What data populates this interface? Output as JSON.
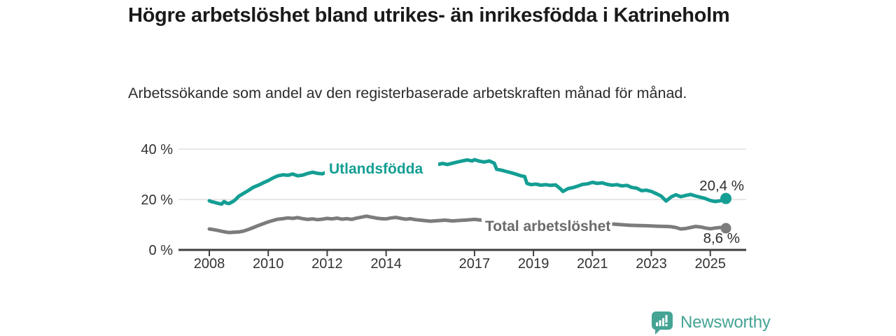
{
  "header": {
    "title": "Högre arbetslöshet bland utrikes- än inrikesfödda i Katrineholm",
    "subtitle": "Arbetssökande som andel av den registerbaserade arbetskraften månad för månad."
  },
  "chart_data": {
    "type": "line",
    "title": "Högre arbetslöshet bland utrikes- än inrikesfödda i Katrineholm",
    "subtitle": "Arbetssökande som andel av den registerbaserade arbetskraften månad för månad.",
    "x_axis": {
      "unit": "year",
      "ticks": [
        "2008",
        "2010",
        "2012",
        "2014",
        "2017",
        "2019",
        "2021",
        "2023",
        "2025"
      ],
      "tick_values": [
        2008,
        2010,
        2012,
        2014,
        2017,
        2019,
        2021,
        2023,
        2025
      ],
      "range": [
        2008,
        2025.6
      ]
    },
    "y_axis": {
      "unit": "%",
      "ticks": [
        0,
        20,
        40
      ],
      "tick_labels": [
        "0 %",
        "20 %",
        "40 %"
      ],
      "range": [
        0,
        44
      ]
    },
    "grid": "horizontal",
    "legend": "inline-labels",
    "series": [
      {
        "name": "Utlandsfödda",
        "color": "#149e94",
        "end_value": 20.4,
        "end_label": "20,4 %",
        "points": [
          [
            2008.0,
            19.5
          ],
          [
            2008.08,
            19.1
          ],
          [
            2008.17,
            18.9
          ],
          [
            2008.25,
            18.6
          ],
          [
            2008.33,
            18.4
          ],
          [
            2008.42,
            18.2
          ],
          [
            2008.5,
            19.2
          ],
          [
            2008.58,
            18.6
          ],
          [
            2008.67,
            18.4
          ],
          [
            2008.75,
            18.9
          ],
          [
            2008.83,
            19.4
          ],
          [
            2008.92,
            20.3
          ],
          [
            2009.0,
            21.3
          ],
          [
            2009.17,
            22.5
          ],
          [
            2009.33,
            23.6
          ],
          [
            2009.5,
            24.9
          ],
          [
            2009.67,
            25.7
          ],
          [
            2009.83,
            26.6
          ],
          [
            2010.0,
            27.5
          ],
          [
            2010.17,
            28.6
          ],
          [
            2010.33,
            29.4
          ],
          [
            2010.5,
            29.8
          ],
          [
            2010.67,
            29.6
          ],
          [
            2010.83,
            30.1
          ],
          [
            2011.0,
            29.4
          ],
          [
            2011.17,
            29.7
          ],
          [
            2011.33,
            30.3
          ],
          [
            2011.5,
            30.8
          ],
          [
            2011.67,
            30.4
          ],
          [
            2011.83,
            30.2
          ],
          [
            2012.0,
            30.9
          ],
          [
            2012.17,
            31.5
          ],
          [
            2012.33,
            31.8
          ],
          [
            2012.5,
            31.4
          ],
          [
            2012.67,
            31.9
          ],
          [
            2012.83,
            31.6
          ],
          [
            2013.0,
            32.1
          ],
          [
            2013.17,
            32.5
          ],
          [
            2013.33,
            32.1
          ],
          [
            2013.5,
            32.4
          ],
          [
            2013.67,
            32.8
          ],
          [
            2013.83,
            32.4
          ],
          [
            2014.0,
            32.0
          ],
          [
            2014.17,
            30.9
          ],
          [
            2014.33,
            31.7
          ],
          [
            2014.58,
            32.3
          ],
          [
            2014.83,
            32.7
          ],
          [
            2015.08,
            33.0
          ],
          [
            2015.33,
            33.3
          ],
          [
            2015.58,
            33.7
          ],
          [
            2015.75,
            33.9
          ],
          [
            2015.92,
            34.3
          ],
          [
            2016.08,
            33.9
          ],
          [
            2016.25,
            34.4
          ],
          [
            2016.42,
            34.9
          ],
          [
            2016.58,
            35.3
          ],
          [
            2016.75,
            35.7
          ],
          [
            2016.92,
            35.3
          ],
          [
            2017.0,
            35.8
          ],
          [
            2017.17,
            35.2
          ],
          [
            2017.33,
            34.9
          ],
          [
            2017.5,
            35.3
          ],
          [
            2017.67,
            34.4
          ],
          [
            2017.75,
            32.0
          ],
          [
            2017.92,
            31.6
          ],
          [
            2018.08,
            31.1
          ],
          [
            2018.25,
            30.6
          ],
          [
            2018.42,
            30.0
          ],
          [
            2018.58,
            29.4
          ],
          [
            2018.7,
            29.1
          ],
          [
            2018.78,
            26.4
          ],
          [
            2018.92,
            25.9
          ],
          [
            2019.08,
            26.1
          ],
          [
            2019.25,
            25.7
          ],
          [
            2019.42,
            25.9
          ],
          [
            2019.58,
            25.6
          ],
          [
            2019.75,
            25.8
          ],
          [
            2019.92,
            24.2
          ],
          [
            2020.0,
            23.2
          ],
          [
            2020.17,
            24.3
          ],
          [
            2020.33,
            24.7
          ],
          [
            2020.5,
            25.3
          ],
          [
            2020.67,
            26.0
          ],
          [
            2020.83,
            26.2
          ],
          [
            2021.0,
            26.8
          ],
          [
            2021.17,
            26.4
          ],
          [
            2021.33,
            26.6
          ],
          [
            2021.5,
            26.0
          ],
          [
            2021.67,
            25.7
          ],
          [
            2021.83,
            25.9
          ],
          [
            2022.0,
            25.4
          ],
          [
            2022.17,
            25.6
          ],
          [
            2022.33,
            24.8
          ],
          [
            2022.5,
            24.5
          ],
          [
            2022.67,
            23.5
          ],
          [
            2022.83,
            23.7
          ],
          [
            2023.0,
            23.2
          ],
          [
            2023.17,
            22.3
          ],
          [
            2023.33,
            21.4
          ],
          [
            2023.5,
            19.4
          ],
          [
            2023.67,
            21.0
          ],
          [
            2023.83,
            21.9
          ],
          [
            2024.0,
            21.1
          ],
          [
            2024.17,
            21.6
          ],
          [
            2024.33,
            22.0
          ],
          [
            2024.5,
            21.4
          ],
          [
            2024.67,
            20.9
          ],
          [
            2024.83,
            20.4
          ],
          [
            2025.0,
            19.6
          ],
          [
            2025.17,
            19.2
          ],
          [
            2025.33,
            19.5
          ],
          [
            2025.5,
            19.9
          ],
          [
            2025.58,
            20.4
          ]
        ]
      },
      {
        "name": "Total arbetslöshet",
        "color": "#7c7c7c",
        "end_value": 8.6,
        "end_label": "8,6 %",
        "points": [
          [
            2008.0,
            8.3
          ],
          [
            2008.17,
            8.0
          ],
          [
            2008.33,
            7.6
          ],
          [
            2008.5,
            7.2
          ],
          [
            2008.67,
            6.9
          ],
          [
            2008.83,
            7.0
          ],
          [
            2009.0,
            7.1
          ],
          [
            2009.17,
            7.5
          ],
          [
            2009.33,
            8.1
          ],
          [
            2009.5,
            8.9
          ],
          [
            2009.67,
            9.7
          ],
          [
            2009.83,
            10.4
          ],
          [
            2010.0,
            11.1
          ],
          [
            2010.17,
            11.7
          ],
          [
            2010.33,
            12.2
          ],
          [
            2010.5,
            12.4
          ],
          [
            2010.67,
            12.7
          ],
          [
            2010.83,
            12.5
          ],
          [
            2011.0,
            12.8
          ],
          [
            2011.17,
            12.4
          ],
          [
            2011.33,
            12.1
          ],
          [
            2011.5,
            12.3
          ],
          [
            2011.67,
            12.0
          ],
          [
            2011.83,
            12.2
          ],
          [
            2012.0,
            12.5
          ],
          [
            2012.17,
            12.3
          ],
          [
            2012.33,
            12.6
          ],
          [
            2012.5,
            12.2
          ],
          [
            2012.67,
            12.4
          ],
          [
            2012.83,
            12.1
          ],
          [
            2013.0,
            12.6
          ],
          [
            2013.17,
            13.0
          ],
          [
            2013.33,
            13.4
          ],
          [
            2013.5,
            13.0
          ],
          [
            2013.67,
            12.6
          ],
          [
            2013.83,
            12.4
          ],
          [
            2014.0,
            12.3
          ],
          [
            2014.17,
            12.7
          ],
          [
            2014.33,
            12.9
          ],
          [
            2014.5,
            12.5
          ],
          [
            2014.67,
            12.2
          ],
          [
            2014.83,
            12.4
          ],
          [
            2015.0,
            12.0
          ],
          [
            2015.25,
            11.7
          ],
          [
            2015.5,
            11.4
          ],
          [
            2015.75,
            11.6
          ],
          [
            2016.0,
            11.8
          ],
          [
            2016.25,
            11.5
          ],
          [
            2016.5,
            11.7
          ],
          [
            2016.75,
            11.9
          ],
          [
            2017.0,
            12.1
          ],
          [
            2017.25,
            11.8
          ],
          [
            2017.5,
            11.9
          ],
          [
            2017.75,
            11.5
          ],
          [
            2018.0,
            11.3
          ],
          [
            2018.25,
            11.1
          ],
          [
            2018.5,
            11.2
          ],
          [
            2018.75,
            11.0
          ],
          [
            2019.0,
            11.1
          ],
          [
            2019.25,
            11.2
          ],
          [
            2019.5,
            11.0
          ],
          [
            2019.75,
            10.8
          ],
          [
            2020.0,
            11.0
          ],
          [
            2020.25,
            11.4
          ],
          [
            2020.5,
            11.2
          ],
          [
            2020.75,
            11.0
          ],
          [
            2021.0,
            10.8
          ],
          [
            2021.25,
            10.6
          ],
          [
            2021.5,
            10.4
          ],
          [
            2021.75,
            10.2
          ],
          [
            2022.0,
            10.0
          ],
          [
            2022.25,
            9.8
          ],
          [
            2022.5,
            9.7
          ],
          [
            2022.75,
            9.6
          ],
          [
            2023.0,
            9.5
          ],
          [
            2023.25,
            9.4
          ],
          [
            2023.5,
            9.3
          ],
          [
            2023.67,
            9.2
          ],
          [
            2023.83,
            8.9
          ],
          [
            2024.0,
            8.3
          ],
          [
            2024.17,
            8.5
          ],
          [
            2024.33,
            8.9
          ],
          [
            2024.5,
            9.3
          ],
          [
            2024.67,
            9.1
          ],
          [
            2024.83,
            8.7
          ],
          [
            2025.0,
            8.4
          ],
          [
            2025.17,
            8.7
          ],
          [
            2025.33,
            8.9
          ],
          [
            2025.5,
            8.8
          ],
          [
            2025.58,
            8.6
          ]
        ]
      }
    ]
  },
  "footer": {
    "brand": "Newsworthy"
  },
  "colors": {
    "accent_teal": "#149e94",
    "series_gray": "#7c7c7c",
    "gray_label": "#6b6b6b",
    "logo_teal": "#45a494",
    "axis": "#3f3f3f",
    "grid": "#d9d9d9",
    "tick_text": "#333333",
    "end_label_text": "#2d2d2d"
  }
}
